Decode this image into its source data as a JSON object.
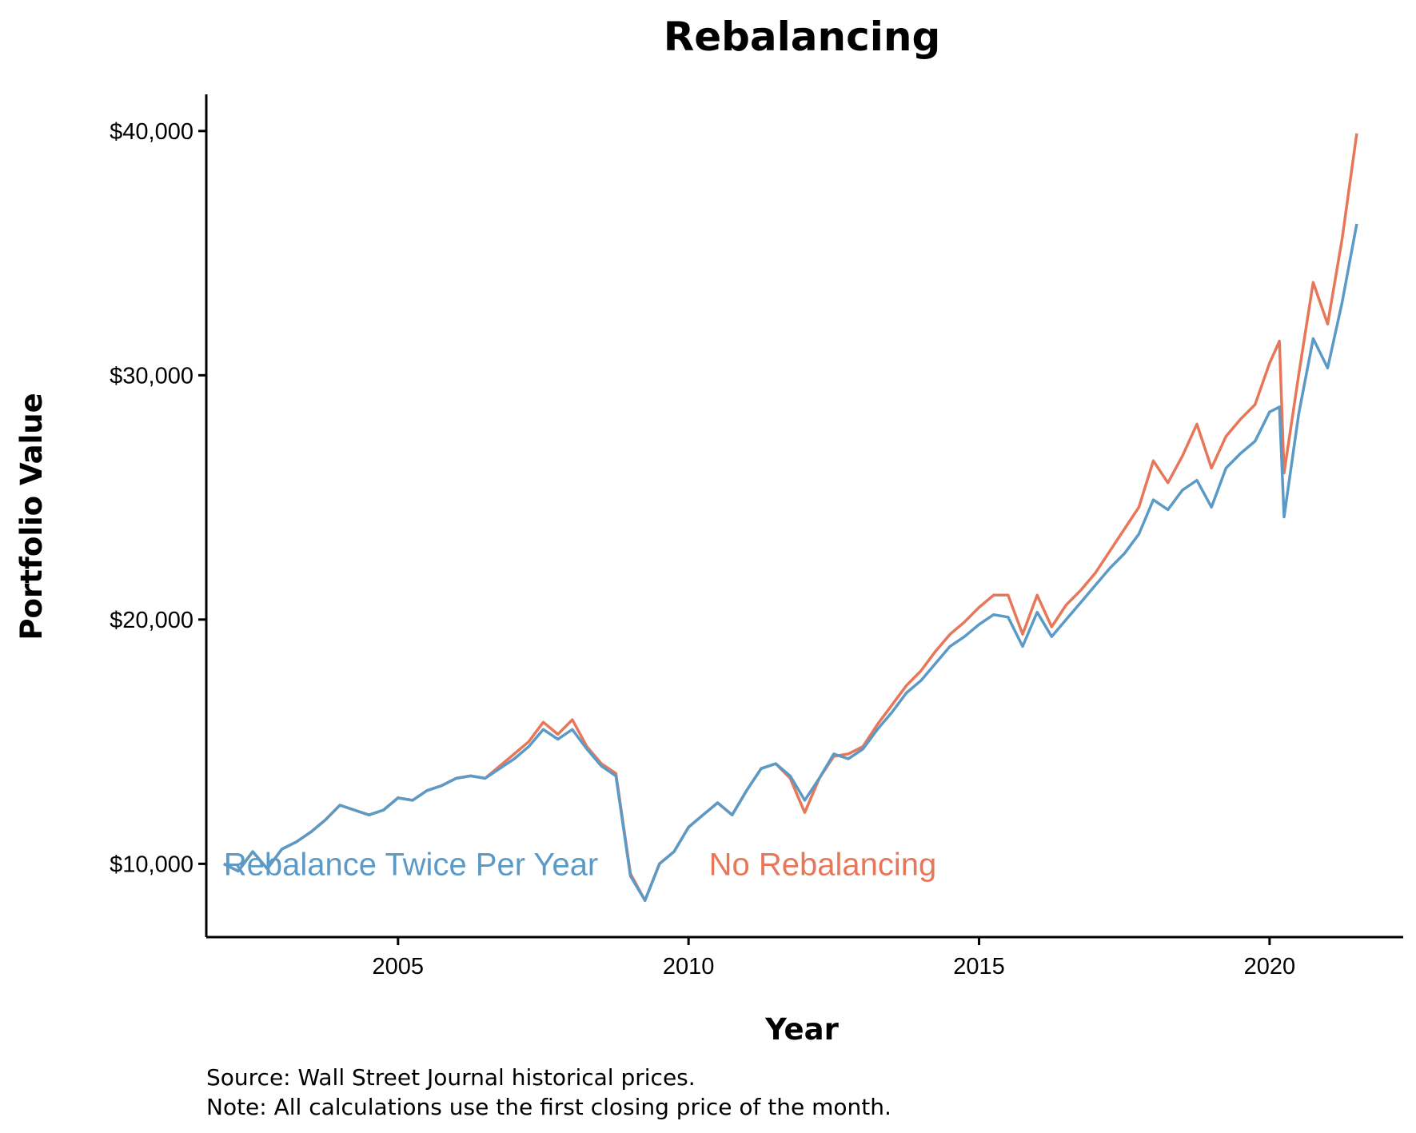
{
  "colors": {
    "rebalance": "#5b9ac6",
    "no_rebalance": "#e8775a",
    "axis": "#000000"
  },
  "chart_data": {
    "type": "line",
    "title": "Rebalancing",
    "xlabel": "Year",
    "ylabel": "Portfolio Value",
    "xlim": [
      2001.7,
      2022.3
    ],
    "ylim": [
      7000,
      41500
    ],
    "x_ticks": [
      2005,
      2010,
      2015,
      2020
    ],
    "x_tick_labels": [
      "2005",
      "2010",
      "2015",
      "2020"
    ],
    "y_ticks": [
      10000,
      20000,
      30000,
      40000
    ],
    "y_tick_labels": [
      "$10,000",
      "$20,000",
      "$30,000",
      "$40,000"
    ],
    "grid": false,
    "legend": "direct labels inside plot, bottom-left",
    "series": [
      {
        "name": "Rebalance Twice Per Year",
        "color": "#5b9ac6",
        "label_anchor": [
          2002.0,
          10000
        ],
        "x": [
          2002.0,
          2002.25,
          2002.5,
          2002.75,
          2003.0,
          2003.25,
          2003.5,
          2003.75,
          2004.0,
          2004.25,
          2004.5,
          2004.75,
          2005.0,
          2005.25,
          2005.5,
          2005.75,
          2006.0,
          2006.25,
          2006.5,
          2006.75,
          2007.0,
          2007.25,
          2007.5,
          2007.75,
          2008.0,
          2008.25,
          2008.5,
          2008.75,
          2009.0,
          2009.25,
          2009.5,
          2009.75,
          2010.0,
          2010.25,
          2010.5,
          2010.75,
          2011.0,
          2011.25,
          2011.5,
          2011.75,
          2012.0,
          2012.25,
          2012.5,
          2012.75,
          2013.0,
          2013.25,
          2013.5,
          2013.75,
          2014.0,
          2014.25,
          2014.5,
          2014.75,
          2015.0,
          2015.25,
          2015.5,
          2015.75,
          2016.0,
          2016.25,
          2016.5,
          2016.75,
          2017.0,
          2017.25,
          2017.5,
          2017.75,
          2018.0,
          2018.25,
          2018.5,
          2018.75,
          2019.0,
          2019.25,
          2019.5,
          2019.75,
          2020.0,
          2020.17,
          2020.25,
          2020.5,
          2020.75,
          2021.0,
          2021.25,
          2021.5
        ],
        "y": [
          10000,
          9700,
          10500,
          9800,
          10600,
          10900,
          11300,
          11800,
          12400,
          12200,
          12000,
          12200,
          12700,
          12600,
          13000,
          13200,
          13500,
          13600,
          13500,
          13900,
          14300,
          14800,
          15500,
          15100,
          15500,
          14700,
          14000,
          13600,
          9500,
          8500,
          10000,
          10500,
          11500,
          12000,
          12500,
          12000,
          13000,
          13900,
          14100,
          13600,
          12600,
          13500,
          14500,
          14300,
          14700,
          15500,
          16200,
          17000,
          17500,
          18200,
          18900,
          19300,
          19800,
          20200,
          20100,
          18900,
          20300,
          19300,
          20000,
          20700,
          21400,
          22100,
          22700,
          23500,
          24900,
          24500,
          25300,
          25700,
          24600,
          26200,
          26800,
          27300,
          28500,
          28700,
          24200,
          28400,
          31500,
          30300,
          33000,
          36200
        ]
      },
      {
        "name": "No Rebalancing",
        "color": "#e8775a",
        "label_anchor": [
          2010.35,
          10000
        ],
        "x": [
          2002.0,
          2002.25,
          2002.5,
          2002.75,
          2003.0,
          2003.25,
          2003.5,
          2003.75,
          2004.0,
          2004.25,
          2004.5,
          2004.75,
          2005.0,
          2005.25,
          2005.5,
          2005.75,
          2006.0,
          2006.25,
          2006.5,
          2006.75,
          2007.0,
          2007.25,
          2007.5,
          2007.75,
          2008.0,
          2008.25,
          2008.5,
          2008.75,
          2009.0,
          2009.25,
          2009.5,
          2009.75,
          2010.0,
          2010.25,
          2010.5,
          2010.75,
          2011.0,
          2011.25,
          2011.5,
          2011.75,
          2012.0,
          2012.25,
          2012.5,
          2012.75,
          2013.0,
          2013.25,
          2013.5,
          2013.75,
          2014.0,
          2014.25,
          2014.5,
          2014.75,
          2015.0,
          2015.25,
          2015.5,
          2015.75,
          2016.0,
          2016.25,
          2016.5,
          2016.75,
          2017.0,
          2017.25,
          2017.5,
          2017.75,
          2018.0,
          2018.25,
          2018.5,
          2018.75,
          2019.0,
          2019.25,
          2019.5,
          2019.75,
          2020.0,
          2020.17,
          2020.25,
          2020.5,
          2020.75,
          2021.0,
          2021.25,
          2021.5
        ],
        "y": [
          10000,
          9700,
          10500,
          9800,
          10600,
          10900,
          11300,
          11800,
          12400,
          12200,
          12000,
          12200,
          12700,
          12600,
          13000,
          13200,
          13500,
          13600,
          13500,
          14000,
          14500,
          15000,
          15800,
          15300,
          15900,
          14800,
          14100,
          13700,
          9600,
          8500,
          10000,
          10500,
          11500,
          12000,
          12500,
          12000,
          13000,
          13900,
          14100,
          13500,
          12100,
          13500,
          14400,
          14500,
          14800,
          15700,
          16500,
          17300,
          17900,
          18700,
          19400,
          19900,
          20500,
          21000,
          21000,
          19400,
          21000,
          19700,
          20600,
          21200,
          21900,
          22800,
          23700,
          24600,
          26500,
          25600,
          26700,
          28000,
          26200,
          27500,
          28200,
          28800,
          30500,
          31400,
          26000,
          30000,
          33800,
          32100,
          35600,
          39900
        ]
      }
    ]
  },
  "caption": {
    "source": "Source: Wall Street Journal historical prices.",
    "note": "Note: All calculations use the first closing price of the month."
  }
}
